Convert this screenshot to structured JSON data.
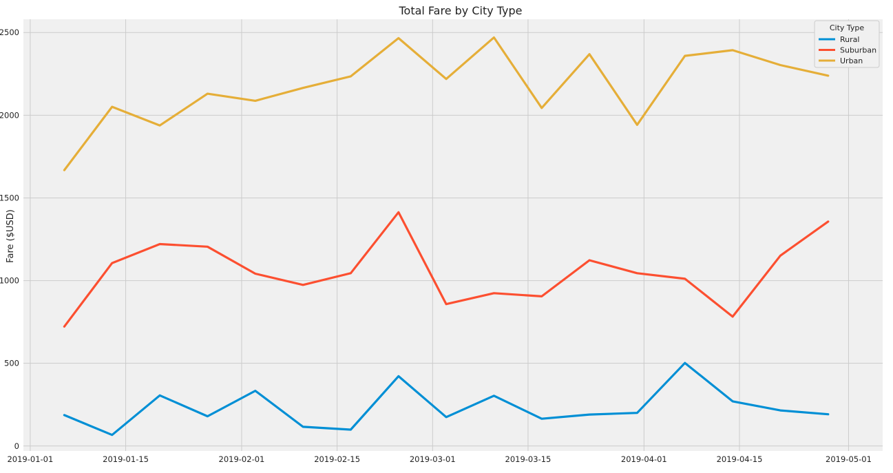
{
  "chart_data": {
    "type": "line",
    "title": "Total Fare by City Type",
    "xlabel": "",
    "ylabel": "Fare ($USD)",
    "ylim": [
      -30,
      2580
    ],
    "xlim": [
      "2018-12-31",
      "2019-05-06"
    ],
    "yticks": [
      0,
      500,
      1000,
      1500,
      2000,
      2500
    ],
    "ytick_labels": [
      "0",
      "500",
      "1000",
      "1500",
      "2000",
      "2500"
    ],
    "xticks": [
      "2019-01-01",
      "2019-01-15",
      "2019-02-01",
      "2019-02-15",
      "2019-03-01",
      "2019-03-15",
      "2019-04-01",
      "2019-04-15",
      "2019-05-01"
    ],
    "xtick_labels": [
      "2019-01-01",
      "2019-01-15",
      "2019-02-01",
      "2019-02-15",
      "2019-03-01",
      "2019-03-15",
      "2019-04-01",
      "2019-04-15",
      "2019-05-01"
    ],
    "grid": true,
    "legend": {
      "title": "City Type",
      "placement": "top-right"
    },
    "x": [
      "2019-01-06",
      "2019-01-13",
      "2019-01-20",
      "2019-01-27",
      "2019-02-03",
      "2019-02-10",
      "2019-02-17",
      "2019-02-24",
      "2019-03-03",
      "2019-03-10",
      "2019-03-17",
      "2019-03-24",
      "2019-03-31",
      "2019-04-07",
      "2019-04-14",
      "2019-04-21",
      "2019-04-28"
    ],
    "series": [
      {
        "name": "Rural",
        "color": "#008fd5",
        "values": [
          187,
          67,
          306,
          180,
          334,
          116,
          99,
          422,
          175,
          304,
          165,
          190,
          200,
          502,
          270,
          215,
          192
        ]
      },
      {
        "name": "Suburban",
        "color": "#fc4f30",
        "values": [
          722,
          1106,
          1221,
          1205,
          1042,
          974,
          1045,
          1413,
          858,
          924,
          905,
          1123,
          1045,
          1011,
          782,
          1151,
          1357
        ]
      },
      {
        "name": "Urban",
        "color": "#e5ae38",
        "values": [
          1668,
          2051,
          1938,
          2130,
          2087,
          2165,
          2235,
          2466,
          2219,
          2470,
          2044,
          2369,
          1942,
          2359,
          2393,
          2303,
          2239
        ]
      }
    ]
  }
}
